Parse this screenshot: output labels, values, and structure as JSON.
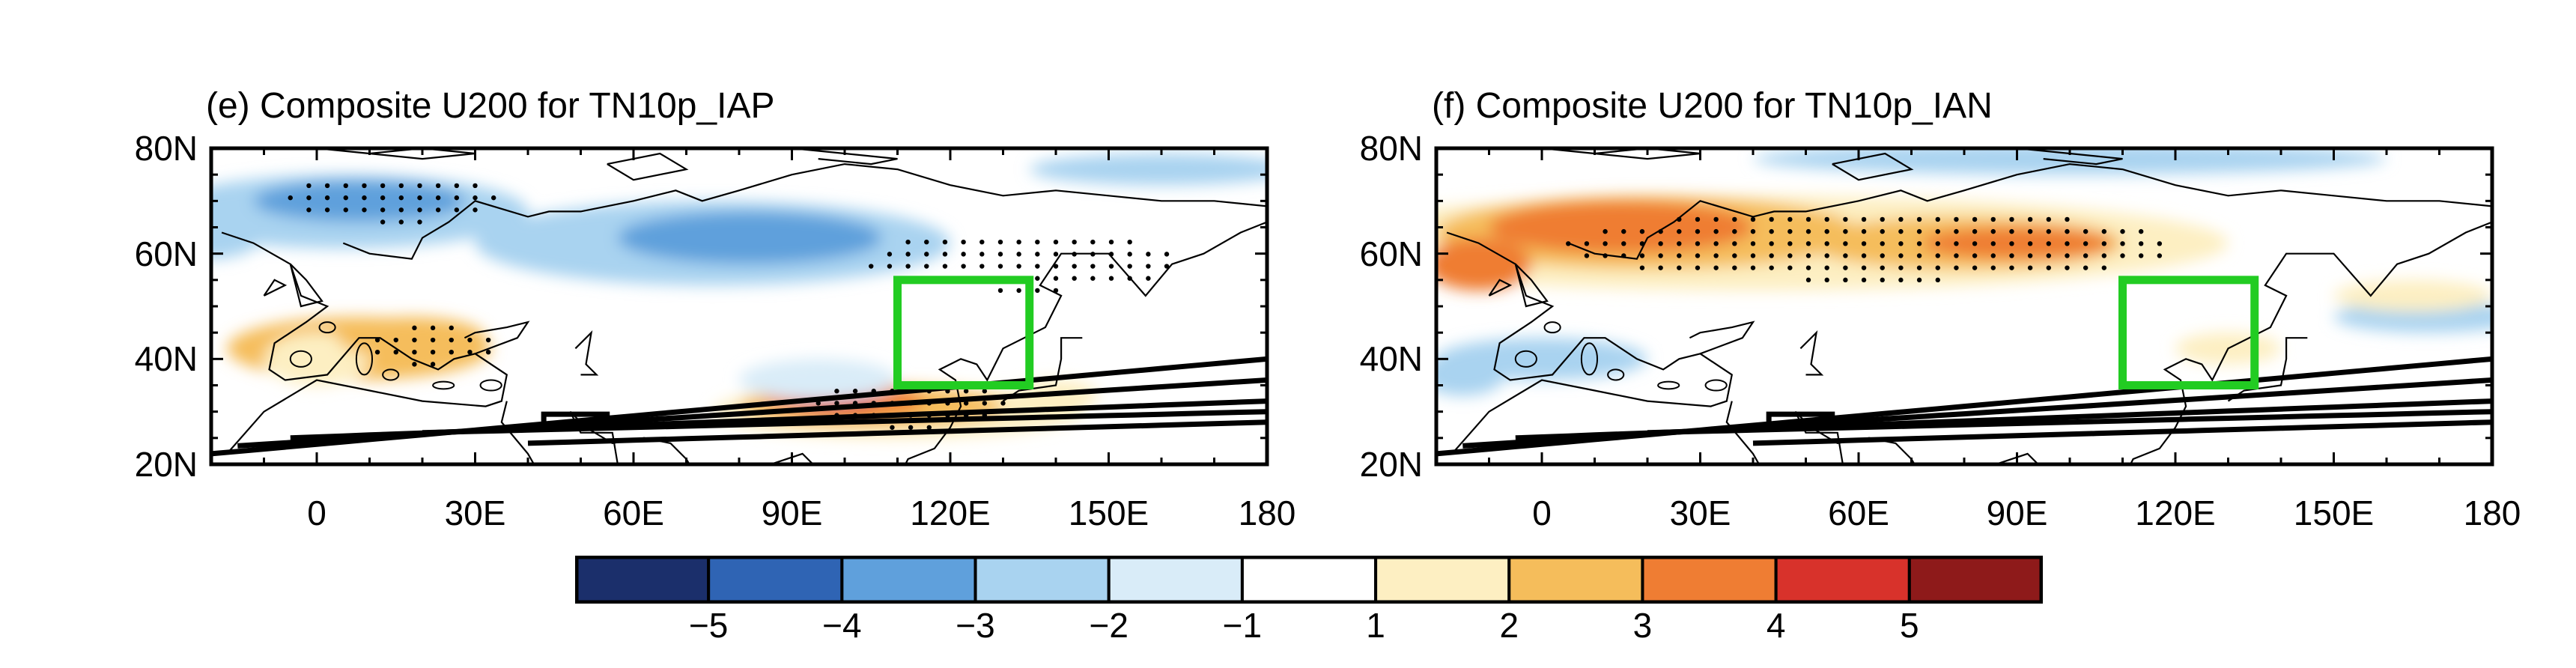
{
  "panels": [
    {
      "id": "e",
      "title": "(e) Composite U200 for TN10p_IAP",
      "y_ticks": [
        "80N",
        "60N",
        "40N",
        "20N"
      ],
      "x_ticks": [
        "0",
        "30E",
        "60E",
        "90E",
        "120E",
        "150E",
        "180"
      ],
      "box": {
        "lon": [
          110,
          135
        ],
        "lat": [
          35,
          55
        ],
        "color": "#22cc22"
      }
    },
    {
      "id": "f",
      "title": "(f) Composite U200 for TN10p_IAN",
      "y_ticks": [
        "80N",
        "60N",
        "40N",
        "20N"
      ],
      "x_ticks": [
        "0",
        "30E",
        "60E",
        "90E",
        "120E",
        "150E",
        "180"
      ],
      "box": {
        "lon": [
          110,
          135
        ],
        "lat": [
          35,
          55
        ],
        "color": "#22cc22"
      }
    }
  ],
  "colorbar": {
    "labels": [
      "−5",
      "−4",
      "−3",
      "−2",
      "−1",
      "1",
      "2",
      "3",
      "4",
      "5"
    ],
    "colors": [
      "#1b2f6b",
      "#2f64b4",
      "#5fa0dc",
      "#a9d3f0",
      "#d9ecf8",
      "#ffffff",
      "#fdefc2",
      "#f5bd5b",
      "#ef7d33",
      "#d8322b",
      "#8e1a1a"
    ]
  }
}
